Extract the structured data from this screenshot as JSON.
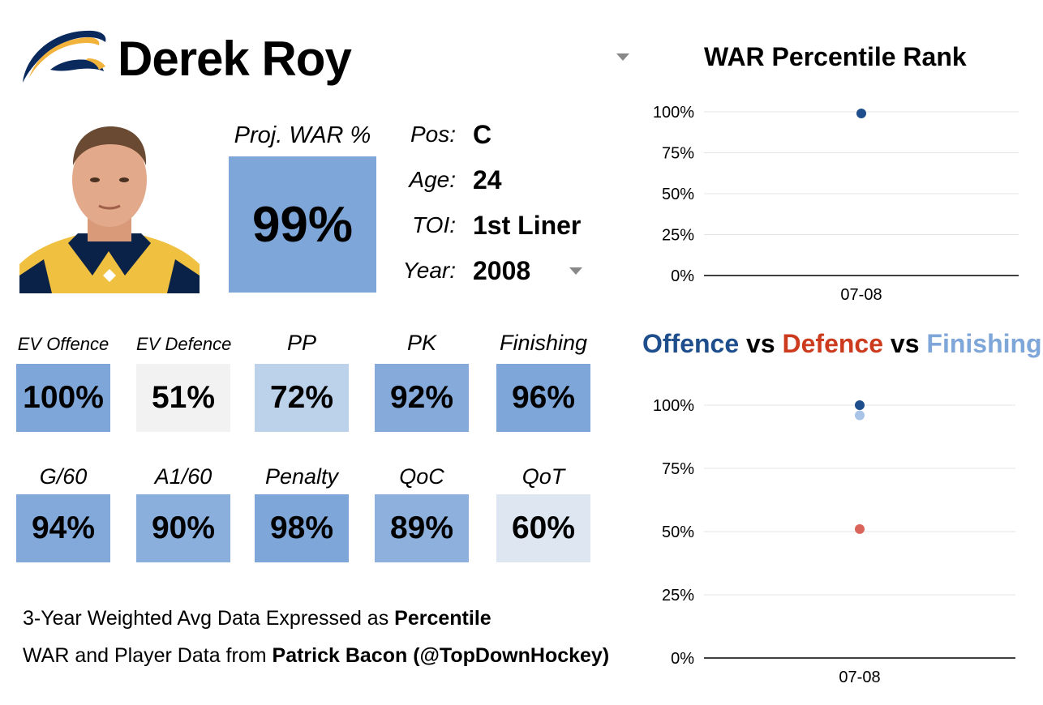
{
  "player": {
    "name": "Derek Roy"
  },
  "proj_war": {
    "label": "Proj. WAR %",
    "value": "99%",
    "color": "#7ea6d8"
  },
  "info": [
    {
      "label": "Pos:",
      "value": "C"
    },
    {
      "label": "Age:",
      "value": "24"
    },
    {
      "label": "TOI:",
      "value": "1st Liner"
    },
    {
      "label": "Year:",
      "value": "2008"
    }
  ],
  "stats_row1": [
    {
      "label": "EV Offence",
      "value": "100%",
      "color": "#7ea6d8"
    },
    {
      "label": "EV Defence",
      "value": "51%",
      "color": "#f2f2f2"
    },
    {
      "label": "PP",
      "value": "72%",
      "color": "#bcd1ea"
    },
    {
      "label": "PK",
      "value": "92%",
      "color": "#86abdb"
    },
    {
      "label": "Finishing",
      "value": "96%",
      "color": "#7ea6d8"
    }
  ],
  "stats_row2": [
    {
      "label": "G/60",
      "value": "94%",
      "color": "#83a9da"
    },
    {
      "label": "A1/60",
      "value": "90%",
      "color": "#8bafdc"
    },
    {
      "label": "Penalty",
      "value": "98%",
      "color": "#7ea6d8"
    },
    {
      "label": "QoC",
      "value": "89%",
      "color": "#8db0dd"
    },
    {
      "label": "QoT",
      "value": "60%",
      "color": "#dde6f1"
    }
  ],
  "footer": {
    "line1_prefix": "3-Year Weighted Avg Data Expressed as ",
    "line1_bold": "Percentile",
    "line2_prefix": "WAR and Player Data from ",
    "line2_bold": "Patrick Bacon (@TopDownHockey)"
  },
  "chart_data": [
    {
      "type": "scatter",
      "title": "WAR Percentile Rank",
      "categories": [
        "07-08"
      ],
      "series": [
        {
          "values": [
            99
          ],
          "color": "#1f4e8c"
        }
      ],
      "ylim": [
        0,
        100
      ],
      "yticks": [
        "0%",
        "25%",
        "50%",
        "75%",
        "100%"
      ],
      "grid": true
    },
    {
      "type": "scatter",
      "title_parts": [
        {
          "text": "Offence",
          "color": "#1f4e8c"
        },
        {
          "text": " vs ",
          "color": "#000000"
        },
        {
          "text": "Defence",
          "color": "#cc3b1e"
        },
        {
          "text": " vs ",
          "color": "#000000"
        },
        {
          "text": "Finishing",
          "color": "#7ea6d8"
        }
      ],
      "categories": [
        "07-08"
      ],
      "series": [
        {
          "name": "Offence",
          "values": [
            100
          ],
          "color": "#1f4e8c"
        },
        {
          "name": "Defence",
          "values": [
            51
          ],
          "color": "#d9645a"
        },
        {
          "name": "Finishing",
          "values": [
            96
          ],
          "color": "#a9c4e6"
        }
      ],
      "ylim": [
        0,
        100
      ],
      "yticks": [
        "0%",
        "25%",
        "50%",
        "75%",
        "100%"
      ],
      "grid": true
    }
  ]
}
